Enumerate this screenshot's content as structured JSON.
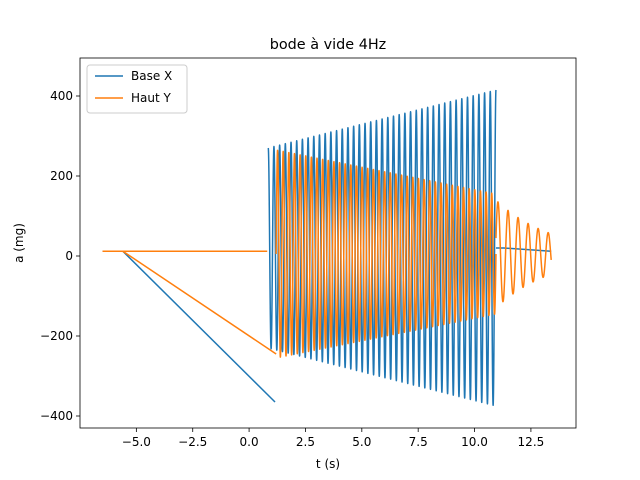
{
  "chart_data": {
    "type": "line",
    "title": "bode à vide 4Hz",
    "xlabel": "t (s)",
    "ylabel": "a (mg)",
    "xlim": [
      -7.5,
      14.5
    ],
    "ylim": [
      -430,
      495
    ],
    "xticks": [
      -5.0,
      -2.5,
      0.0,
      2.5,
      5.0,
      7.5,
      10.0,
      12.5
    ],
    "xtick_labels": [
      "−5.0",
      "−2.5",
      "0.0",
      "2.5",
      "5.0",
      "7.5",
      "10.0",
      "12.5"
    ],
    "yticks": [
      -400,
      -200,
      0,
      200,
      400
    ],
    "ytick_labels": [
      "−400",
      "−200",
      "0",
      "200",
      "400"
    ],
    "grid": false,
    "legend_position": "top-left",
    "series": [
      {
        "name": "Base X",
        "color": "#1f77b4",
        "segments": [
          {
            "kind": "line",
            "points": [
              [
                -6.5,
                12
              ],
              [
                -5.6,
                12
              ],
              [
                0.8,
                12
              ]
            ]
          },
          {
            "kind": "line",
            "points": [
              [
                -5.6,
                12
              ],
              [
                1.15,
                -365
              ]
            ]
          },
          {
            "kind": "burst",
            "t_start": 0.85,
            "t_end": 10.95,
            "cycles": 40,
            "center": 20,
            "amp_start": 250,
            "amp_end": 395,
            "phase": 1.57
          },
          {
            "kind": "line",
            "points": [
              [
                10.95,
                20
              ],
              [
                11.3,
                20
              ],
              [
                13.4,
                12
              ]
            ]
          }
        ]
      },
      {
        "name": "Haut Y",
        "color": "#ff7f0e",
        "segments": [
          {
            "kind": "line",
            "points": [
              [
                -6.5,
                12
              ],
              [
                0.8,
                12
              ]
            ]
          },
          {
            "kind": "line",
            "points": [
              [
                -5.6,
                12
              ],
              [
                1.2,
                -245
              ]
            ]
          },
          {
            "kind": "burst",
            "t_start": 1.2,
            "t_end": 10.95,
            "cycles": 39,
            "center": 5,
            "amp_start": 260,
            "amp_end": 150,
            "phase": 0.0
          },
          {
            "kind": "decay",
            "t_start": 10.95,
            "t_end": 13.4,
            "cycles": 5.5,
            "center": 5,
            "amp": 135,
            "tau": 2.5,
            "phase": 0.3
          }
        ]
      }
    ]
  }
}
